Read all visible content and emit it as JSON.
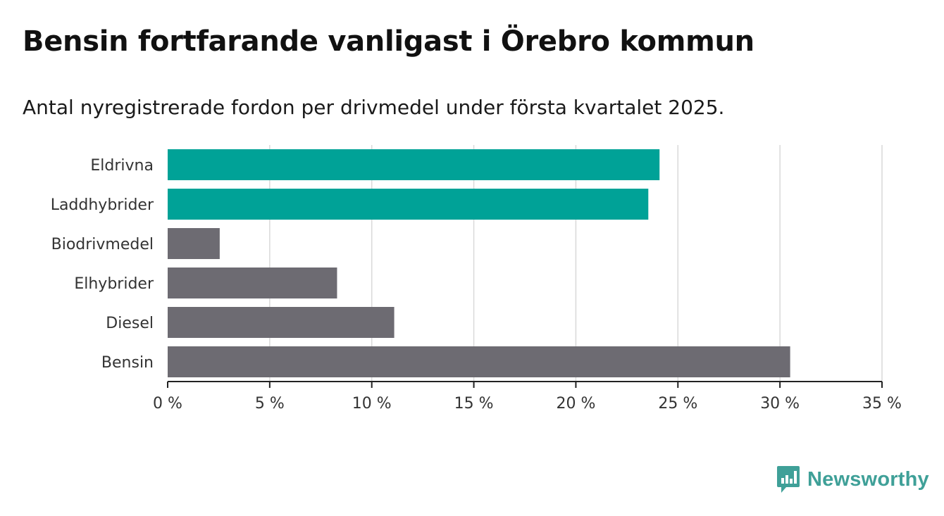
{
  "header": {
    "title": "Bensin fortfarande vanligast i Örebro kommun",
    "subtitle": "Antal nyregistrerade fordon per drivmedel under första kvartalet 2025."
  },
  "brand": {
    "name": "Newsworthy",
    "color": "#3fa098",
    "icon": "bar-chart-speech-bubble-icon"
  },
  "colors": {
    "highlight": "#00a297",
    "default": "#6d6b72",
    "grid": "#d9d9d9",
    "axis": "#222222"
  },
  "chart_data": {
    "type": "bar",
    "orientation": "horizontal",
    "categories": [
      "Eldrivna",
      "Laddhybrider",
      "Biodrivmedel",
      "Elhybrider",
      "Diesel",
      "Bensin"
    ],
    "values": [
      24.1,
      23.55,
      2.55,
      8.3,
      11.1,
      30.5
    ],
    "highlighted": [
      true,
      true,
      false,
      false,
      false,
      false
    ],
    "xlim": [
      0,
      35
    ],
    "xticks": [
      0,
      5,
      10,
      15,
      20,
      25,
      30,
      35
    ],
    "xtick_labels": [
      "0 %",
      "5 %",
      "10 %",
      "15 %",
      "20 %",
      "25 %",
      "30 %",
      "35 %"
    ],
    "grid": "vertical",
    "xlabel": "",
    "ylabel": ""
  }
}
